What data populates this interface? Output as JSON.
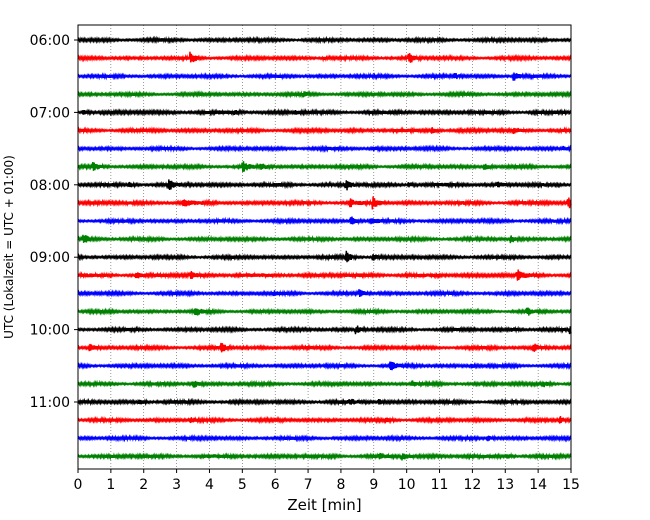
{
  "chart_data": {
    "type": "line",
    "title": "",
    "xlabel": "Zeit  [min]",
    "ylabel": "UTC (Lokalzeit = UTC + 01:00)",
    "xlim": [
      0,
      15
    ],
    "x_ticks": [
      "0",
      "1",
      "2",
      "3",
      "4",
      "5",
      "6",
      "7",
      "8",
      "9",
      "10",
      "11",
      "12",
      "13",
      "14",
      "15"
    ],
    "y_ticks": [
      "06:00",
      "07:00",
      "08:00",
      "09:00",
      "10:00",
      "11:00"
    ],
    "grid": "vertical dotted",
    "trace_colors": [
      "#000000",
      "#ff0000",
      "#0000ff",
      "#008000"
    ],
    "traces": [
      {
        "start": "06:00",
        "color": "#000000",
        "amplitude": 1.0,
        "events": []
      },
      {
        "start": "06:15",
        "color": "#ff0000",
        "amplitude": 1.0,
        "events": [
          {
            "t": 3.45,
            "a": 5
          },
          {
            "t": 7.5,
            "a": 1.5
          },
          {
            "t": 10.1,
            "a": 5
          }
        ]
      },
      {
        "start": "06:30",
        "color": "#0000ff",
        "amplitude": 1.0,
        "events": [
          {
            "t": 13.3,
            "a": 4
          },
          {
            "t": 11.5,
            "a": 2
          }
        ]
      },
      {
        "start": "06:45",
        "color": "#008000",
        "amplitude": 0.9,
        "events": [
          {
            "t": 6.9,
            "a": 1.5
          },
          {
            "t": 9.0,
            "a": 1.3
          }
        ]
      },
      {
        "start": "07:00",
        "color": "#000000",
        "amplitude": 1.2,
        "events": [
          {
            "t": 0.2,
            "a": 2
          },
          {
            "t": 4.8,
            "a": 1.5
          },
          {
            "t": 6.6,
            "a": 1.3
          }
        ]
      },
      {
        "start": "07:15",
        "color": "#ff0000",
        "amplitude": 1.1,
        "events": [
          {
            "t": 10.8,
            "a": 3
          },
          {
            "t": 13.3,
            "a": 2.5
          }
        ]
      },
      {
        "start": "07:30",
        "color": "#0000ff",
        "amplitude": 1.0,
        "events": [
          {
            "t": 9.0,
            "a": 2
          },
          {
            "t": 14.8,
            "a": 1.5
          }
        ]
      },
      {
        "start": "07:45",
        "color": "#008000",
        "amplitude": 1.0,
        "events": [
          {
            "t": 0.5,
            "a": 3
          },
          {
            "t": 5.05,
            "a": 4.5
          },
          {
            "t": 5.6,
            "a": 2.5
          },
          {
            "t": 12.4,
            "a": 3
          }
        ]
      },
      {
        "start": "08:00",
        "color": "#000000",
        "amplitude": 1.1,
        "events": [
          {
            "t": 1.6,
            "a": 2
          },
          {
            "t": 2.8,
            "a": 4
          },
          {
            "t": 8.2,
            "a": 4.5
          },
          {
            "t": 10.1,
            "a": 2
          },
          {
            "t": 12.8,
            "a": 2
          }
        ]
      },
      {
        "start": "08:15",
        "color": "#ff0000",
        "amplitude": 1.2,
        "events": [
          {
            "t": 3.25,
            "a": 4
          },
          {
            "t": 8.3,
            "a": 3
          },
          {
            "t": 9.0,
            "a": 5
          },
          {
            "t": 14.95,
            "a": 4
          }
        ]
      },
      {
        "start": "08:30",
        "color": "#0000ff",
        "amplitude": 1.0,
        "events": [
          {
            "t": 8.35,
            "a": 4
          },
          {
            "t": 8.95,
            "a": 2.5
          }
        ]
      },
      {
        "start": "08:45",
        "color": "#008000",
        "amplitude": 1.0,
        "events": [
          {
            "t": 0.2,
            "a": 4
          },
          {
            "t": 13.2,
            "a": 3
          }
        ]
      },
      {
        "start": "09:00",
        "color": "#000000",
        "amplitude": 1.0,
        "events": [
          {
            "t": 8.2,
            "a": 5
          },
          {
            "t": 9.0,
            "a": 3
          }
        ]
      },
      {
        "start": "09:15",
        "color": "#ff0000",
        "amplitude": 1.3,
        "events": [
          {
            "t": 1.8,
            "a": 2.5
          },
          {
            "t": 3.45,
            "a": 3
          },
          {
            "t": 13.4,
            "a": 4
          }
        ]
      },
      {
        "start": "09:30",
        "color": "#0000ff",
        "amplitude": 1.0,
        "events": [
          {
            "t": 6.0,
            "a": 1.5
          },
          {
            "t": 8.6,
            "a": 3
          }
        ]
      },
      {
        "start": "09:45",
        "color": "#008000",
        "amplitude": 0.9,
        "events": [
          {
            "t": 3.6,
            "a": 4
          },
          {
            "t": 13.7,
            "a": 3
          }
        ]
      },
      {
        "start": "10:00",
        "color": "#000000",
        "amplitude": 1.0,
        "events": [
          {
            "t": 8.5,
            "a": 3.5
          },
          {
            "t": 13.2,
            "a": 2
          },
          {
            "t": 15.0,
            "a": 3
          }
        ]
      },
      {
        "start": "10:15",
        "color": "#ff0000",
        "amplitude": 1.0,
        "events": [
          {
            "t": 0.4,
            "a": 3
          },
          {
            "t": 4.4,
            "a": 3.5
          },
          {
            "t": 13.9,
            "a": 3.5
          }
        ]
      },
      {
        "start": "10:30",
        "color": "#0000ff",
        "amplitude": 1.0,
        "events": [
          {
            "t": 9.55,
            "a": 3.5
          },
          {
            "t": 12.0,
            "a": 1.3
          }
        ]
      },
      {
        "start": "10:45",
        "color": "#008000",
        "amplitude": 1.0,
        "events": [
          {
            "t": 3.55,
            "a": 3
          },
          {
            "t": 10.2,
            "a": 2
          },
          {
            "t": 14.2,
            "a": 2
          }
        ]
      },
      {
        "start": "11:00",
        "color": "#000000",
        "amplitude": 1.1,
        "events": [
          {
            "t": 1.9,
            "a": 2
          },
          {
            "t": 8.3,
            "a": 2
          },
          {
            "t": 9.2,
            "a": 2
          }
        ]
      },
      {
        "start": "11:15",
        "color": "#ff0000",
        "amplitude": 1.0,
        "events": [
          {
            "t": 3.45,
            "a": 2
          },
          {
            "t": 9.4,
            "a": 2
          },
          {
            "t": 14.7,
            "a": 3
          }
        ]
      },
      {
        "start": "11:30",
        "color": "#0000ff",
        "amplitude": 1.0,
        "events": [
          {
            "t": 12.5,
            "a": 2
          }
        ]
      },
      {
        "start": "11:45",
        "color": "#008000",
        "amplitude": 1.2,
        "events": [
          {
            "t": 9.2,
            "a": 2
          },
          {
            "t": 9.9,
            "a": 3
          },
          {
            "t": 13.1,
            "a": 1.5
          }
        ]
      }
    ]
  }
}
